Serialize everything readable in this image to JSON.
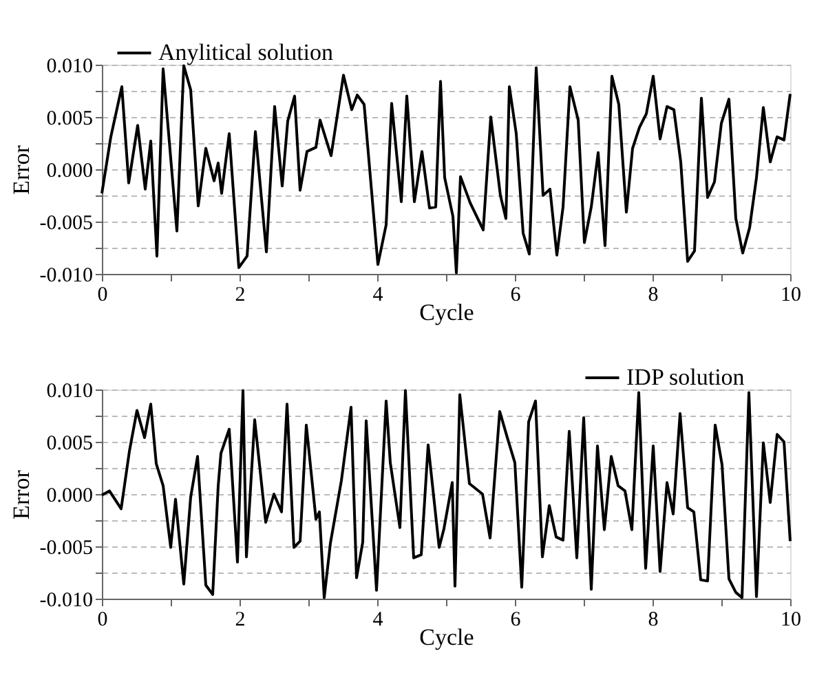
{
  "chart_data": [
    {
      "type": "line",
      "xlabel": "Cycle",
      "ylabel": "Error",
      "legend": "top left",
      "grid": "y",
      "line_style": "solid",
      "marker": "none",
      "xlim": [
        0,
        10
      ],
      "ylim": [
        -0.01,
        0.01
      ],
      "xticks": [
        0,
        {
          "value": 1,
          "label": null
        },
        2,
        {
          "value": 3,
          "label": null
        },
        4,
        {
          "value": 5,
          "label": null
        },
        6,
        {
          "value": 7,
          "label": null
        },
        8,
        {
          "value": 9,
          "label": null
        },
        10
      ],
      "yticks": [
        {
          "value": -0.01,
          "label": "-0.010"
        },
        {
          "value": -0.0075,
          "label": null
        },
        {
          "value": -0.005,
          "label": "-0.005"
        },
        {
          "value": -0.0025,
          "label": null
        },
        {
          "value": 0,
          "label": "0.000"
        },
        {
          "value": 0.0025,
          "label": null
        },
        {
          "value": 0.005,
          "label": "0.005"
        },
        {
          "value": 0.0075,
          "label": null
        },
        {
          "value": 0.01,
          "label": "0.010"
        }
      ],
      "series": [
        {
          "name": "Anylitical solution",
          "color": "#000000",
          "x": [
            0,
            0.13,
            0.29,
            0.39,
            0.52,
            0.63,
            0.71,
            0.8,
            0.89,
            1.09,
            1.19,
            1.29,
            1.4,
            1.51,
            1.63,
            1.69,
            1.74,
            1.85,
            1.99,
            2.11,
            2.23,
            2.39,
            2.51,
            2.62,
            2.7,
            2.8,
            2.88,
            2.98,
            3.11,
            3.17,
            3.33,
            3.51,
            3.63,
            3.71,
            3.81,
            4.01,
            4.13,
            4.21,
            4.35,
            4.43,
            4.54,
            4.65,
            4.76,
            4.85,
            4.92,
            4.98,
            5.1,
            5.15,
            5.21,
            5.35,
            5.54,
            5.65,
            5.79,
            5.87,
            5.92,
            6.02,
            6.12,
            6.21,
            6.31,
            6.41,
            6.51,
            6.61,
            6.7,
            6.8,
            6.92,
            7.01,
            7.11,
            7.21,
            7.31,
            7.41,
            7.51,
            7.62,
            7.71,
            7.81,
            7.91,
            8.01,
            8.11,
            8.21,
            8.31,
            8.41,
            8.51,
            8.61,
            8.71,
            8.8,
            8.9,
            9.0,
            9.11,
            9.21,
            9.31,
            9.41,
            9.51,
            9.61,
            9.71,
            9.81,
            9.91,
            10.0
          ],
          "values": [
            -0.0023,
            0.0031,
            0.0079,
            -0.0013,
            0.0042,
            -0.0019,
            0.0027,
            -0.0083,
            0.0096,
            -0.0059,
            0.0099,
            0.0076,
            -0.0035,
            0.002,
            -0.0011,
            0.0006,
            -0.0023,
            0.0034,
            -0.0094,
            -0.0083,
            0.0036,
            -0.0079,
            0.006,
            -0.0016,
            0.0046,
            0.007,
            -0.002,
            0.0017,
            0.0021,
            0.0047,
            0.0013,
            0.009,
            0.0057,
            0.0071,
            0.0062,
            -0.0091,
            -0.0053,
            0.0063,
            -0.0031,
            0.007,
            -0.0031,
            0.0017,
            -0.0037,
            -0.0036,
            0.0084,
            -0.0008,
            -0.0045,
            -0.0099,
            -0.0007,
            -0.0032,
            -0.0058,
            0.005,
            -0.0025,
            -0.0047,
            0.0079,
            0.0034,
            -0.0061,
            -0.0081,
            0.0097,
            -0.0025,
            -0.0019,
            -0.0082,
            -0.0036,
            0.0079,
            0.0047,
            -0.007,
            -0.0036,
            0.0016,
            -0.0073,
            0.0089,
            0.0062,
            -0.0041,
            0.002,
            0.004,
            0.0053,
            0.0089,
            0.0029,
            0.006,
            0.0057,
            0.0007,
            -0.0088,
            -0.0078,
            0.0068,
            -0.0027,
            -0.0012,
            0.0044,
            0.0067,
            -0.0047,
            -0.008,
            -0.0056,
            -0.0008,
            0.0059,
            0.0007,
            0.0031,
            0.0028,
            0.0072
          ]
        }
      ]
    },
    {
      "type": "line",
      "xlabel": "Cycle",
      "ylabel": "Error",
      "legend": "top right",
      "grid": "y",
      "line_style": "solid",
      "marker": "none",
      "xlim": [
        0,
        10
      ],
      "ylim": [
        -0.01,
        0.01
      ],
      "xticks": [
        0,
        {
          "value": 1,
          "label": null
        },
        2,
        {
          "value": 3,
          "label": null
        },
        4,
        {
          "value": 5,
          "label": null
        },
        6,
        {
          "value": 7,
          "label": null
        },
        8,
        {
          "value": 9,
          "label": null
        },
        10
      ],
      "yticks": [
        {
          "value": -0.01,
          "label": "-0.010"
        },
        {
          "value": -0.0075,
          "label": null
        },
        {
          "value": -0.005,
          "label": "-0.005"
        },
        {
          "value": -0.0025,
          "label": null
        },
        {
          "value": 0,
          "label": "0.000"
        },
        {
          "value": 0.0025,
          "label": null
        },
        {
          "value": 0.005,
          "label": "0.005"
        },
        {
          "value": 0.0075,
          "label": null
        },
        {
          "value": 0.01,
          "label": "0.010"
        }
      ],
      "series": [
        {
          "name": "IDP solution",
          "color": "#000000",
          "x": [
            0,
            0.11,
            0.28,
            0.4,
            0.51,
            0.62,
            0.71,
            0.79,
            0.89,
            1.0,
            1.07,
            1.19,
            1.29,
            1.39,
            1.51,
            1.61,
            1.69,
            1.73,
            1.85,
            1.97,
            2.05,
            2.1,
            2.22,
            2.38,
            2.5,
            2.61,
            2.69,
            2.79,
            2.88,
            2.97,
            3.11,
            3.16,
            3.23,
            3.32,
            3.48,
            3.62,
            3.7,
            3.79,
            3.84,
            3.99,
            4.13,
            4.19,
            4.33,
            4.41,
            4.53,
            4.64,
            4.74,
            4.9,
            4.97,
            5.09,
            5.13,
            5.2,
            5.34,
            5.53,
            5.64,
            5.78,
            5.89,
            6.0,
            6.1,
            6.2,
            6.3,
            6.4,
            6.5,
            6.6,
            6.7,
            6.79,
            6.9,
            7.0,
            7.11,
            7.2,
            7.3,
            7.4,
            7.5,
            7.6,
            7.7,
            7.8,
            7.9,
            8.01,
            8.11,
            8.21,
            8.3,
            8.4,
            8.51,
            8.6,
            8.7,
            8.8,
            8.91,
            9.01,
            9.11,
            9.21,
            9.3,
            9.4,
            9.51,
            9.61,
            9.71,
            9.81,
            9.91,
            10.0
          ],
          "values": [
            -0.0001,
            0.0003,
            -0.0014,
            0.0041,
            0.008,
            0.0054,
            0.0086,
            0.0029,
            0.0008,
            -0.0051,
            -0.0005,
            -0.0086,
            -0.0003,
            0.0036,
            -0.0087,
            -0.0096,
            0.0008,
            0.0039,
            0.0062,
            -0.0065,
            0.0099,
            -0.006,
            0.0071,
            -0.0027,
            0.0,
            -0.0017,
            0.0086,
            -0.0051,
            -0.0045,
            0.0066,
            -0.0024,
            -0.0017,
            -0.0099,
            -0.0047,
            0.0013,
            0.0083,
            -0.008,
            -0.0046,
            0.007,
            -0.0092,
            0.0089,
            0.003,
            -0.0032,
            0.0099,
            -0.0061,
            -0.0058,
            0.0047,
            -0.0051,
            -0.0033,
            0.0011,
            -0.0088,
            0.0095,
            0.001,
            0.0,
            -0.0042,
            0.0079,
            0.0054,
            0.003,
            -0.0089,
            0.0069,
            0.0089,
            -0.006,
            -0.0011,
            -0.0041,
            -0.0044,
            0.006,
            -0.0061,
            0.0073,
            -0.0091,
            0.0046,
            -0.0034,
            0.0036,
            0.0008,
            0.0003,
            -0.0034,
            0.0097,
            -0.0071,
            0.0046,
            -0.0074,
            0.0011,
            -0.0019,
            0.0077,
            -0.0013,
            -0.0017,
            -0.0082,
            -0.0083,
            0.0066,
            0.0028,
            -0.0081,
            -0.0094,
            -0.0099,
            0.0097,
            -0.0098,
            0.0049,
            -0.0008,
            0.0057,
            0.005,
            -0.0045
          ]
        }
      ]
    }
  ]
}
